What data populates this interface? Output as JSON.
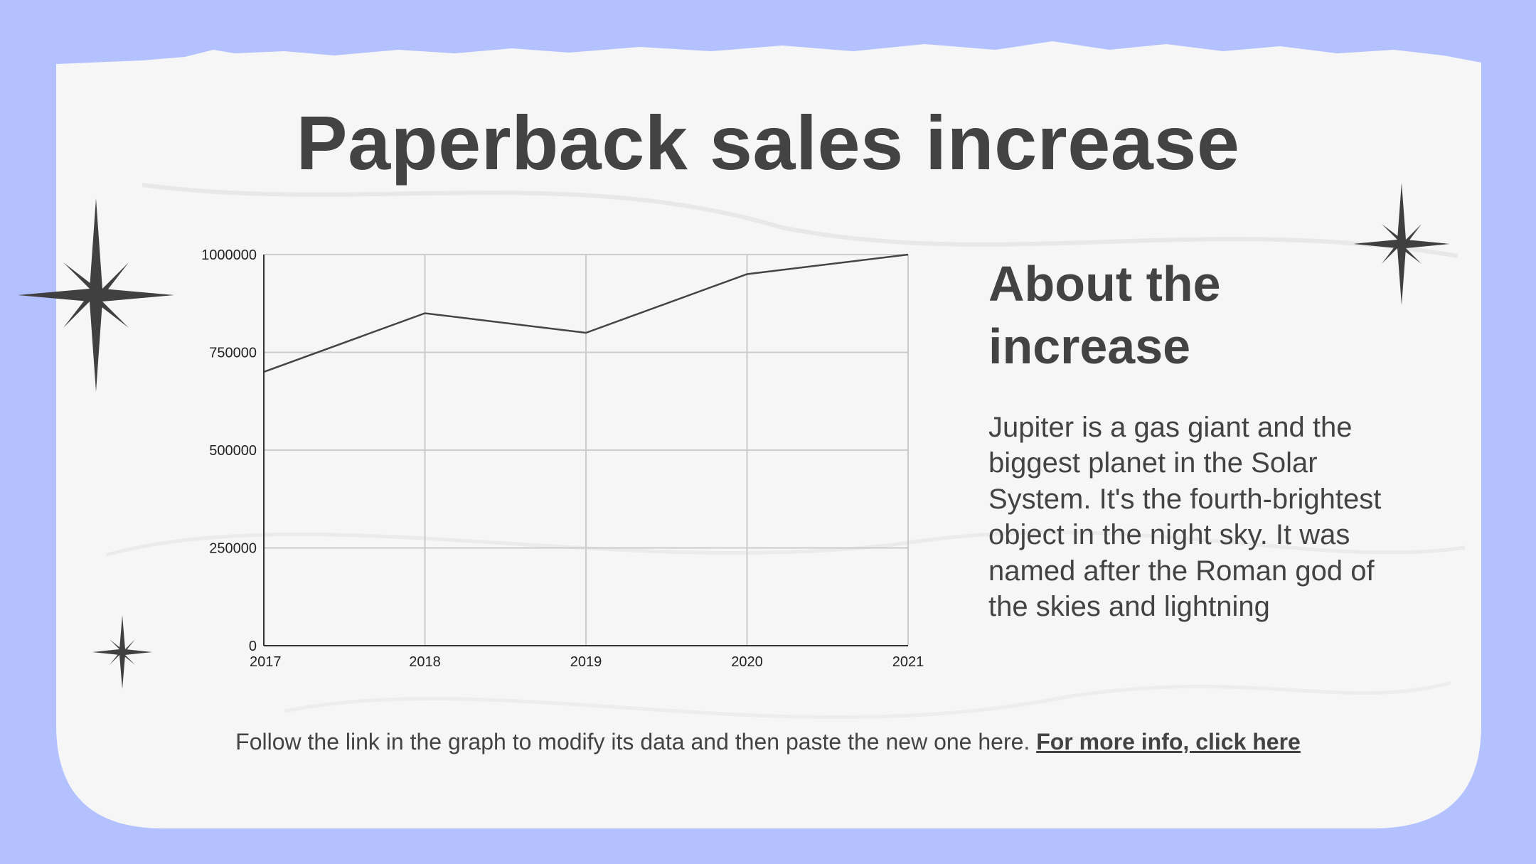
{
  "title": "Paperback sales increase",
  "about": {
    "heading": "About the increase",
    "body": "Jupiter is a gas giant and the biggest planet in the Solar System. It's the fourth-brightest object in the night sky. It was named after the Roman god of the skies and lightning"
  },
  "footer": {
    "text": "Follow the link in the graph to modify its data and then paste the new one here.",
    "link": "For more info, click here"
  },
  "colors": {
    "background": "#b3c1ff",
    "paper": "#f7f7f7",
    "text": "#434343",
    "line": "#444444",
    "grid": "#cccccc"
  },
  "decorations": [
    "sparkle-star-icon",
    "sparkle-star-icon",
    "sparkle-star-icon"
  ],
  "chart_data": {
    "type": "line",
    "categories": [
      "2017",
      "2018",
      "2019",
      "2020",
      "2021"
    ],
    "series": [
      {
        "values": [
          700000,
          850000,
          800000,
          950000,
          1000000
        ]
      }
    ],
    "yticks": [
      "0",
      "250000",
      "500000",
      "750000",
      "1000000"
    ],
    "ylim": [
      0,
      1000000
    ],
    "grid": true,
    "legend": "none",
    "title": "",
    "xlabel": "",
    "ylabel": ""
  }
}
